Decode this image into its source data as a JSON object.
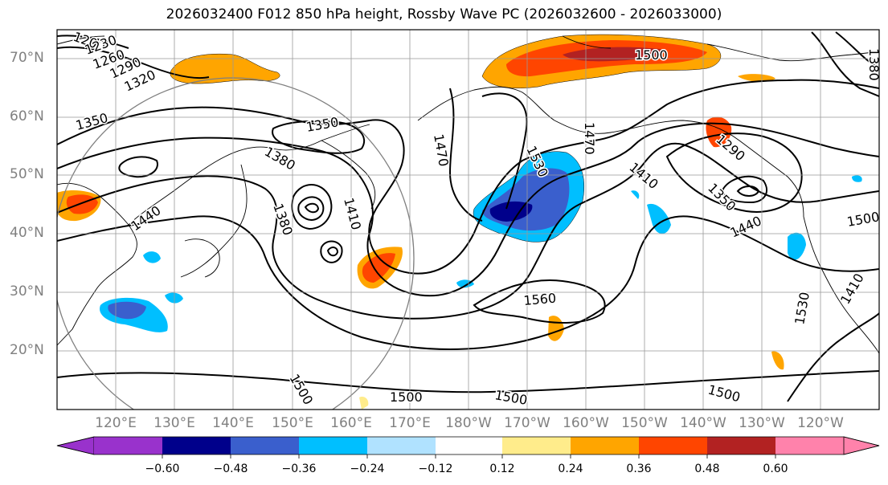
{
  "title": "2026032400 F012 850 hPa height, Rossby Wave PC (2026032600 - 2026033000)",
  "lat_labels": [
    "70°N",
    "60°N",
    "50°N",
    "40°N",
    "30°N",
    "20°N"
  ],
  "lon_labels": [
    "120°E",
    "130°E",
    "140°E",
    "150°E",
    "160°E",
    "170°E",
    "180°W",
    "170°W",
    "160°W",
    "150°W",
    "140°W",
    "130°W",
    "120°W"
  ],
  "contour_labels": [
    "1200",
    "1230",
    "1260",
    "1290",
    "1320",
    "1350",
    "1350",
    "1380",
    "1380",
    "1410",
    "1440",
    "1470",
    "1470",
    "1500",
    "1500",
    "1500",
    "1500",
    "1500",
    "1500",
    "1530",
    "1530",
    "1560",
    "1410",
    "1350",
    "1440",
    "1290",
    "1380",
    "1410"
  ],
  "colorbar": {
    "ticks": [
      "−0.60",
      "−0.48",
      "−0.36",
      "−0.24",
      "−0.12",
      "0.12",
      "0.24",
      "0.36",
      "0.48",
      "0.60"
    ],
    "colors": [
      "#9932cc",
      "#00008b",
      "#3a5fcd",
      "#00bfff",
      "#b0e2ff",
      "#ffffff",
      "#ffec8b",
      "#ffa500",
      "#ff4500",
      "#b22222",
      "#ff82ab"
    ]
  }
}
